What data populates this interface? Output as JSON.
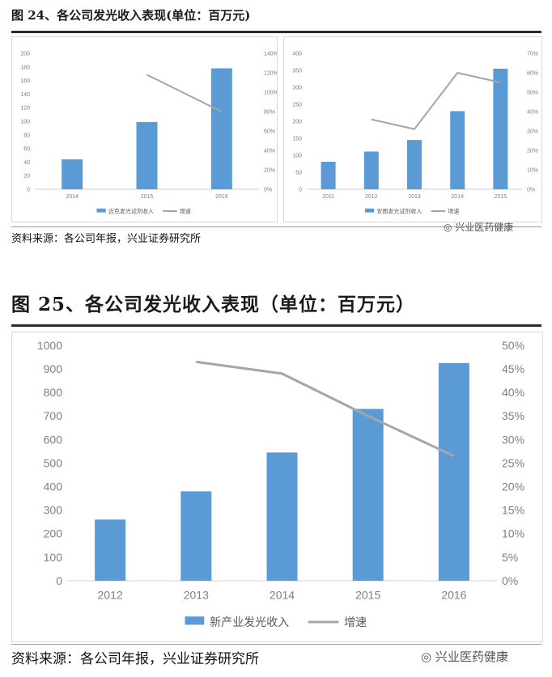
{
  "fig24": {
    "title": "图 24、各公司发光收入表现(单位：百万元)",
    "source": "资料来源：各公司年报，兴业证券研究所",
    "watermark": "兴业医药健康"
  },
  "fig25": {
    "title": "图 25、各公司发光收入表现（单位：百万元）",
    "source": "资料来源：各公司年报，兴业证券研究所",
    "watermark": "兴业医药健康"
  },
  "colors": {
    "bar": "#5b9bd5",
    "line": "#a5a5a5"
  },
  "chart_data": [
    {
      "type": "bar",
      "categories": [
        "2014",
        "2015",
        "2016"
      ],
      "series": [
        {
          "name": "迈克发光试剂收入",
          "kind": "bar",
          "axis": "left",
          "values": [
            44,
            99,
            178
          ]
        },
        {
          "name": "增速",
          "kind": "line",
          "axis": "right",
          "values": [
            null,
            1.18,
            0.8
          ]
        }
      ],
      "yticks": [
        "0",
        "20",
        "40",
        "60",
        "80",
        "100",
        "120",
        "140",
        "160",
        "180",
        "200"
      ],
      "ylim": [
        0,
        200
      ],
      "y2ticks": [
        "0%",
        "20%",
        "40%",
        "60%",
        "80%",
        "100%",
        "120%",
        "140%"
      ],
      "y2lim": [
        0,
        1.4
      ],
      "legend": "bottom"
    },
    {
      "type": "bar",
      "categories": [
        "2011",
        "2012",
        "2013",
        "2014",
        "2015"
      ],
      "series": [
        {
          "name": "安图发光试剂收入",
          "kind": "bar",
          "axis": "left",
          "values": [
            81,
            111,
            145,
            230,
            355
          ]
        },
        {
          "name": "增速",
          "kind": "line",
          "axis": "right",
          "values": [
            null,
            0.36,
            0.31,
            0.6,
            0.55
          ]
        }
      ],
      "yticks": [
        "0",
        "50",
        "100",
        "150",
        "200",
        "250",
        "300",
        "350",
        "400"
      ],
      "ylim": [
        0,
        400
      ],
      "y2ticks": [
        "0%",
        "10%",
        "20%",
        "30%",
        "40%",
        "50%",
        "60%",
        "70%"
      ],
      "y2lim": [
        0,
        0.7
      ],
      "legend": "bottom"
    },
    {
      "type": "bar",
      "categories": [
        "2012",
        "2013",
        "2014",
        "2015",
        "2016"
      ],
      "series": [
        {
          "name": "新产业发光收入",
          "kind": "bar",
          "axis": "left",
          "values": [
            260,
            380,
            545,
            730,
            925
          ]
        },
        {
          "name": "增速",
          "kind": "line",
          "axis": "right",
          "values": [
            null,
            0.465,
            0.44,
            0.35,
            0.265
          ]
        }
      ],
      "yticks": [
        "0",
        "100",
        "200",
        "300",
        "400",
        "500",
        "600",
        "700",
        "800",
        "900",
        "1000"
      ],
      "ylim": [
        0,
        1000
      ],
      "y2ticks": [
        "0%",
        "5%",
        "10%",
        "15%",
        "20%",
        "25%",
        "30%",
        "35%",
        "40%",
        "45%",
        "50%"
      ],
      "y2lim": [
        0,
        0.5
      ],
      "legend": "bottom"
    }
  ]
}
